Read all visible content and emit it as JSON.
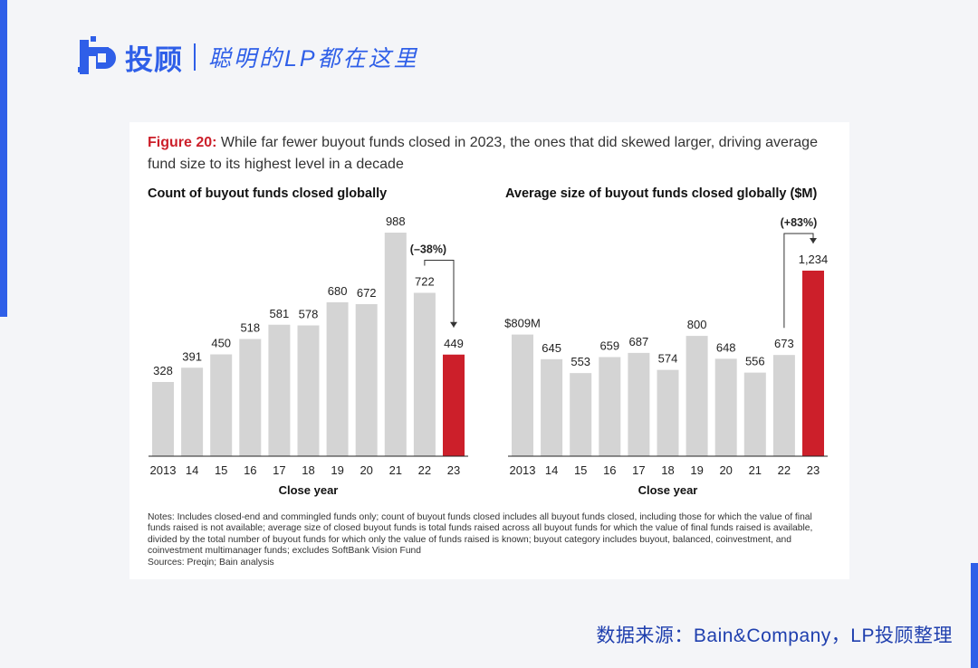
{
  "brand": {
    "name": "投顾",
    "slogan": "聪明的LP都在这里",
    "accent": "#2f5fe8"
  },
  "figure": {
    "label": "Figure 20:",
    "title": "While far fewer buyout funds closed in 2023, the ones that did skewed larger, driving average fund size to its highest level in a decade"
  },
  "chart_data": [
    {
      "type": "bar",
      "title": "Count of buyout funds closed globally",
      "xlabel": "Close year",
      "ylabel": "",
      "categories": [
        "2013",
        "14",
        "15",
        "16",
        "17",
        "18",
        "19",
        "20",
        "21",
        "22",
        "23"
      ],
      "values": [
        328,
        391,
        450,
        518,
        581,
        578,
        680,
        672,
        988,
        722,
        449
      ],
      "value_labels": [
        "328",
        "391",
        "450",
        "518",
        "581",
        "578",
        "680",
        "672",
        "988",
        "722",
        "449"
      ],
      "highlight_index": 10,
      "ylim": [
        0,
        988
      ],
      "grid": false,
      "annotation": {
        "text": "(–38%)",
        "from": "22",
        "to": "23"
      },
      "colors": {
        "bar": "#d4d4d4",
        "highlight": "#cc1f2a"
      }
    },
    {
      "type": "bar",
      "title": "Average size of buyout funds closed globally ($M)",
      "xlabel": "Close year",
      "ylabel": "",
      "categories": [
        "2013",
        "14",
        "15",
        "16",
        "17",
        "18",
        "19",
        "20",
        "21",
        "22",
        "23"
      ],
      "values": [
        809,
        645,
        553,
        659,
        687,
        574,
        800,
        648,
        556,
        673,
        1234
      ],
      "value_labels": [
        "$809M",
        "645",
        "553",
        "659",
        "687",
        "574",
        "800",
        "648",
        "556",
        "673",
        "1,234"
      ],
      "highlight_index": 10,
      "ylim": [
        0,
        1234
      ],
      "grid": false,
      "annotation": {
        "text": "(+83%)",
        "from": "22",
        "to": "23"
      },
      "colors": {
        "bar": "#d4d4d4",
        "highlight": "#cc1f2a"
      }
    }
  ],
  "notes": {
    "text": "Notes: Includes closed-end and commingled funds only; count of buyout funds closed includes all buyout funds closed, including those for which the value of final funds raised is not available; average size of closed buyout funds is total funds raised across all buyout funds for which the value of final funds raised is available, divided by the total number of buyout funds for which only the value of funds raised is known; buyout category includes buyout, balanced, coinvestment, and coinvestment multimanager funds; excludes SoftBank Vision Fund",
    "sources": "Sources: Preqin; Bain analysis"
  },
  "credit": "数据来源：Bain&Company，LP投顾整理"
}
